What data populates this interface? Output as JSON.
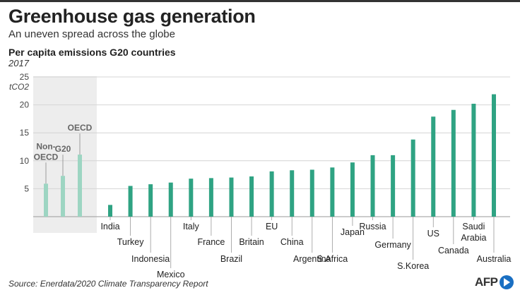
{
  "header": {
    "title": "Greenhouse gas generation",
    "subtitle": "An uneven spread across the globe"
  },
  "footer": {
    "source": "Source: Enerdata/2020 Climate Transparency Report",
    "logo_text": "AFP"
  },
  "chart_data": {
    "type": "bar",
    "title": "Per capita emissions G20 countries",
    "subtitle": "2017",
    "ylabel": "tCO2",
    "ylim": [
      0,
      25
    ],
    "yticks": [
      5,
      10,
      15,
      20,
      25
    ],
    "grid": true,
    "colors": {
      "reference": "#9dd5c2",
      "country": "#2fa383",
      "panel": "#ededed"
    },
    "reference_groups": [
      {
        "label": "Non-OECD",
        "label_lines": [
          "Non-",
          "OECD"
        ],
        "value": 5.9
      },
      {
        "label": "G20",
        "label_lines": [
          "G20"
        ],
        "value": 7.3
      },
      {
        "label": "OECD",
        "label_lines": [
          "OECD"
        ],
        "value": 11.1
      }
    ],
    "categories": [
      {
        "label": "India",
        "label_lines": [
          "India"
        ],
        "value": 2.1
      },
      {
        "label": "Turkey",
        "label_lines": [
          "Turkey"
        ],
        "value": 5.5
      },
      {
        "label": "Indonesia",
        "label_lines": [
          "Indonesia"
        ],
        "value": 5.8
      },
      {
        "label": "Mexico",
        "label_lines": [
          "Mexico"
        ],
        "value": 6.1
      },
      {
        "label": "Italy",
        "label_lines": [
          "Italy"
        ],
        "value": 6.8
      },
      {
        "label": "France",
        "label_lines": [
          "France"
        ],
        "value": 6.9
      },
      {
        "label": "Brazil",
        "label_lines": [
          "Brazil"
        ],
        "value": 7.0
      },
      {
        "label": "Britain",
        "label_lines": [
          "Britain"
        ],
        "value": 7.2
      },
      {
        "label": "EU",
        "label_lines": [
          "EU"
        ],
        "value": 8.1
      },
      {
        "label": "China",
        "label_lines": [
          "China"
        ],
        "value": 8.3
      },
      {
        "label": "Argentina",
        "label_lines": [
          "Argentina"
        ],
        "value": 8.4
      },
      {
        "label": "S.Africa",
        "label_lines": [
          "S.Africa"
        ],
        "value": 8.8
      },
      {
        "label": "Japan",
        "label_lines": [
          "Japan"
        ],
        "value": 9.7
      },
      {
        "label": "Russia",
        "label_lines": [
          "Russia"
        ],
        "value": 11.0
      },
      {
        "label": "Germany",
        "label_lines": [
          "Germany"
        ],
        "value": 11.0
      },
      {
        "label": "S.Korea",
        "label_lines": [
          "S.Korea"
        ],
        "value": 13.8
      },
      {
        "label": "US",
        "label_lines": [
          "US"
        ],
        "value": 17.9
      },
      {
        "label": "Canada",
        "label_lines": [
          "Canada"
        ],
        "value": 19.1
      },
      {
        "label": "Saudi Arabia",
        "label_lines": [
          "Saudi",
          "Arabia"
        ],
        "value": 20.2
      },
      {
        "label": "Australia",
        "label_lines": [
          "Australia"
        ],
        "value": 21.9
      }
    ]
  }
}
